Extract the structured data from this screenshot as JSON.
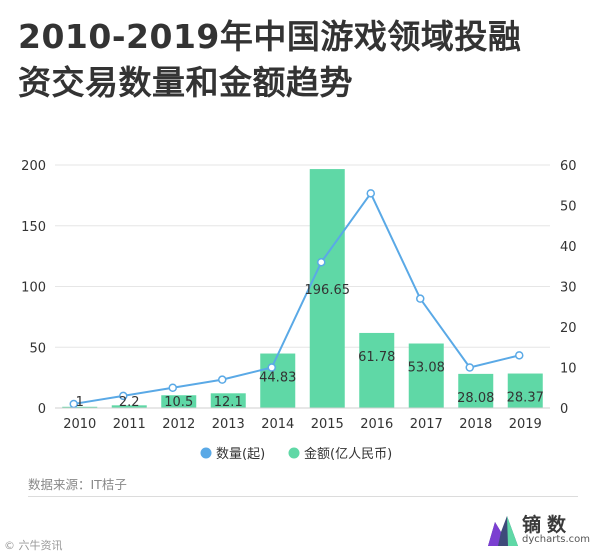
{
  "header": {
    "title_line1": "2010-2019年中国游戏领域投融",
    "title_line2": "资交易数量和金额趋势"
  },
  "footer": {
    "source": "数据来源：IT桔子",
    "brand_name": "镝数",
    "brand_url": "dycharts.com",
    "corner_mark": "© 六牛资讯"
  },
  "colors": {
    "bar": "#5fd8a6",
    "line": "#5aa9e6",
    "point_fill": "#ffffff",
    "grid": "#e6e6e6",
    "logo_accent": "#7b3fd1"
  },
  "chart_data": {
    "type": "bar",
    "categories": [
      "2010",
      "2011",
      "2012",
      "2013",
      "2014",
      "2015",
      "2016",
      "2017",
      "2018",
      "2019"
    ],
    "series": [
      {
        "name": "金额(亿人民币)",
        "type": "bar",
        "axis": "left",
        "values": [
          1,
          2.2,
          10.5,
          12.1,
          44.83,
          196.65,
          61.78,
          53.08,
          28.08,
          28.37
        ],
        "labels": [
          "1",
          "2.2",
          "10.5",
          "12.1",
          "44.83",
          "196.65",
          "61.78",
          "53.08",
          "28.08",
          "28.37"
        ]
      },
      {
        "name": "数量(起)",
        "type": "line",
        "axis": "right",
        "values": [
          1,
          3,
          5,
          7,
          10,
          36,
          53,
          27,
          10,
          13
        ]
      }
    ],
    "y_left": {
      "lim": [
        0,
        200
      ],
      "ticks": [
        "0",
        "50",
        "100",
        "150",
        "200"
      ]
    },
    "y_right": {
      "lim": [
        0,
        60
      ],
      "ticks": [
        "0",
        "10",
        "20",
        "30",
        "40",
        "50",
        "60"
      ]
    },
    "grid": true,
    "legend_placement": "bottom-center"
  }
}
